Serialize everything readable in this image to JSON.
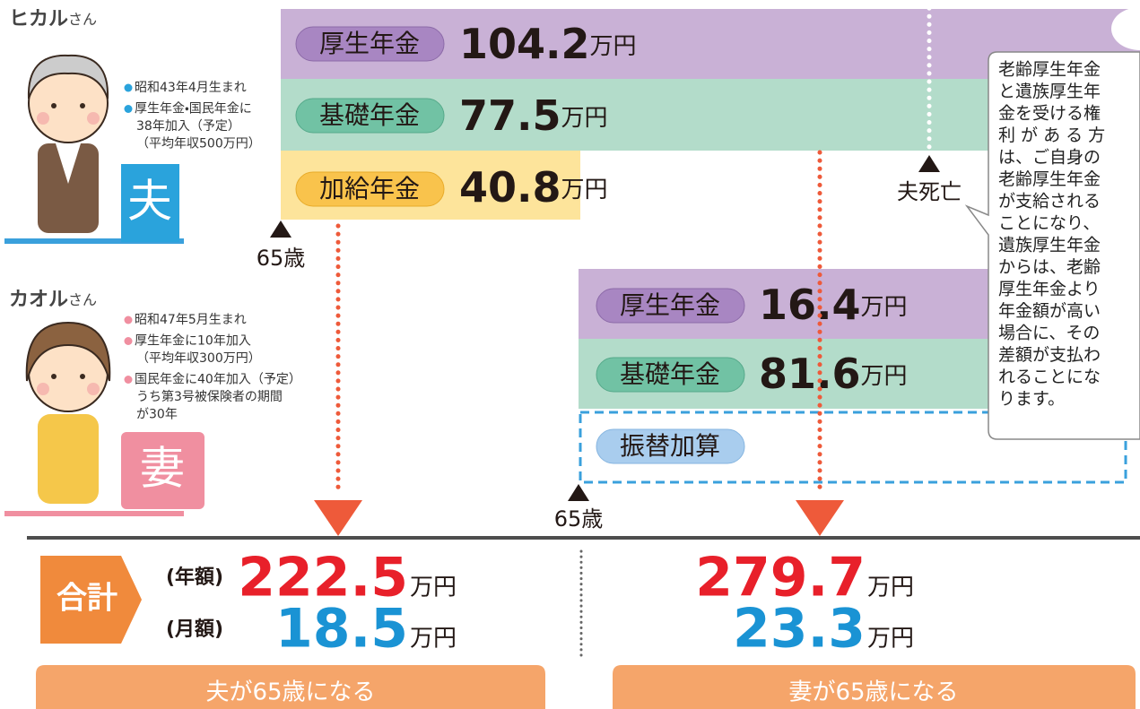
{
  "husband": {
    "name": "ヒカル",
    "honorific": "さん",
    "badge": "夫",
    "notes": [
      [
        "昭和43年4月生まれ"
      ],
      [
        "厚生年金・国民年金に",
        "38年加入（予定）",
        "（平均年収500万円）"
      ]
    ]
  },
  "wife": {
    "name": "カオル",
    "honorific": "さん",
    "badge": "妻",
    "notes": [
      [
        "昭和47年5月生まれ"
      ],
      [
        "厚生年金に10年加入",
        "（平均年収300万円）"
      ],
      [
        "国民年金に40年加入（予定）",
        "うち第3号被保険者の期間",
        "が30年"
      ]
    ]
  },
  "unit": "万円",
  "husband_pensions": [
    {
      "label": "厚生年金",
      "amount": 104.2
    },
    {
      "label": "基礎年金",
      "amount": 77.5
    },
    {
      "label": "加給年金",
      "amount": 40.8
    }
  ],
  "wife_pensions": [
    {
      "label": "厚生年金",
      "amount": 16.4
    },
    {
      "label": "基礎年金",
      "amount": 81.6
    },
    {
      "label": "振替加算"
    }
  ],
  "markers": {
    "husband_65": "65歳",
    "husband_death": "夫死亡",
    "wife_65": "65歳"
  },
  "callout": [
    "老齢厚生年金",
    "と遺族厚生年",
    "金を受ける権",
    "利 が あ る 方",
    "は、ご自身の",
    "老齢厚生年金",
    "が支給される",
    "ことになり、",
    "遺族厚生年金",
    "からは、老齢",
    "厚生年金より",
    "年金額が高い",
    "場合に、その",
    "差額が支払わ",
    "れることにな",
    "ります。"
  ],
  "totals": {
    "label": "合計",
    "annual_label": "(年額)",
    "monthly_label": "(月額)",
    "left": {
      "annual": 222.5,
      "monthly": 18.5
    },
    "right": {
      "annual": 279.7,
      "monthly": 23.3
    }
  },
  "footer": [
    "夫が65歳になる",
    "妻が65歳になる"
  ]
}
